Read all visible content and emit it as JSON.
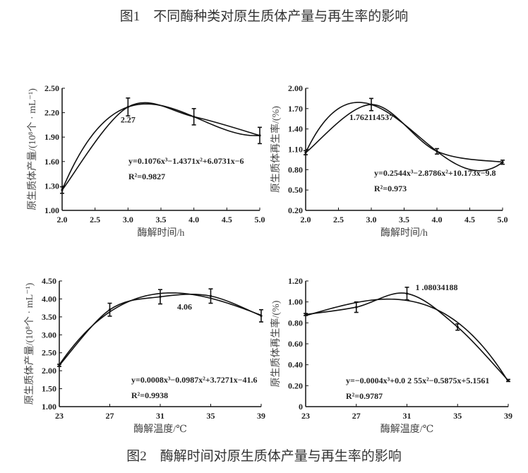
{
  "figure1_caption": "图1　不同酶种类对原生质体产量与再生率的影响",
  "figure2_caption": "图2　酶解时间对原生质体产量与再生率的影响",
  "chart_data": [
    {
      "type": "line",
      "xlabel": "酶解时间/h",
      "ylabel": "原生质体产量/(10⁸个 · mL⁻¹)",
      "xlim": [
        2.0,
        5.0
      ],
      "ylim": [
        1.0,
        2.5
      ],
      "xticks": [
        "2.0",
        "2.5",
        "3.0",
        "3.5",
        "4.0",
        "4.5",
        "5.0"
      ],
      "yticks": [
        "1.00",
        "1.30",
        "1.60",
        "1.90",
        "2.20",
        "2.50"
      ],
      "x": [
        2,
        3,
        4,
        5
      ],
      "y": [
        1.25,
        2.27,
        2.15,
        1.92
      ],
      "error": [
        0.04,
        0.11,
        0.1,
        0.1
      ],
      "point_label": {
        "index": 1,
        "text": "2.27"
      },
      "equation": "y=0.1076x³−1.4371x²+6.0731x−6",
      "r2": "R²=0.9827",
      "grid": false
    },
    {
      "type": "line",
      "xlabel": "酶解时间/h",
      "ylabel": "原生质体再生率/(%)",
      "xlim": [
        2.0,
        5.0
      ],
      "ylim": [
        0.2,
        2.0
      ],
      "xticks": [
        "2.0",
        "2.5",
        "3.0",
        "3.5",
        "4.0",
        "4.5",
        "5.0"
      ],
      "yticks": [
        "0.20",
        "0.50",
        "0.80",
        "1.10",
        "1.40",
        "1.70",
        "2.00"
      ],
      "x": [
        2,
        3,
        4,
        5
      ],
      "y": [
        1.05,
        1.76,
        1.07,
        0.91
      ],
      "error": [
        0.03,
        0.09,
        0.04,
        0.03
      ],
      "point_label": {
        "index": 1,
        "text": "1.762114537"
      },
      "equation": "y=0.2544x³−2.8786x²+10.173x−9.8",
      "r2": "R²=0.973",
      "grid": false
    },
    {
      "type": "line",
      "xlabel": "酶解温度/℃",
      "ylabel": "原生质体产量/(10⁸个 · mL⁻¹)",
      "xlim": [
        23,
        39
      ],
      "ylim": [
        1.0,
        4.5
      ],
      "xticks": [
        "23",
        "27",
        "31",
        "35",
        "39"
      ],
      "yticks": [
        "1.00",
        "1.50",
        "2.00",
        "2.50",
        "3.00",
        "3.50",
        "4.00",
        "4.50"
      ],
      "x": [
        23,
        27,
        31,
        35,
        39
      ],
      "y": [
        2.15,
        3.7,
        4.06,
        4.08,
        3.53
      ],
      "error": [
        0.03,
        0.18,
        0.2,
        0.2,
        0.17
      ],
      "point_label": {
        "index": 2,
        "text": "4.06"
      },
      "equation": "y=0.0008x³−0.0987x²+3.7271x−41.6",
      "r2": "R²=0.9938",
      "grid": false
    },
    {
      "type": "line",
      "xlabel": "酶解温度/℃",
      "ylabel": "原生质体再生率/(%)",
      "xlim": [
        23,
        39
      ],
      "ylim": [
        0,
        1.2
      ],
      "xticks": [
        "23",
        "27",
        "31",
        "35",
        "39"
      ],
      "yticks": [
        "0",
        "0.20",
        "0.40",
        "0.60",
        "0.80",
        "1.00",
        "1.20"
      ],
      "x": [
        23,
        27,
        31,
        35,
        39
      ],
      "y": [
        0.88,
        0.95,
        1.08,
        0.76,
        0.25
      ],
      "error": [
        0.01,
        0.05,
        0.06,
        0.03,
        0.01
      ],
      "point_label": {
        "index": 2,
        "text": "1 .08034188"
      },
      "equation": "y=−0.0004x³+0.0 2 55x²−0.5875x+5.1561",
      "r2": "R²=0.9787",
      "grid": false
    }
  ]
}
